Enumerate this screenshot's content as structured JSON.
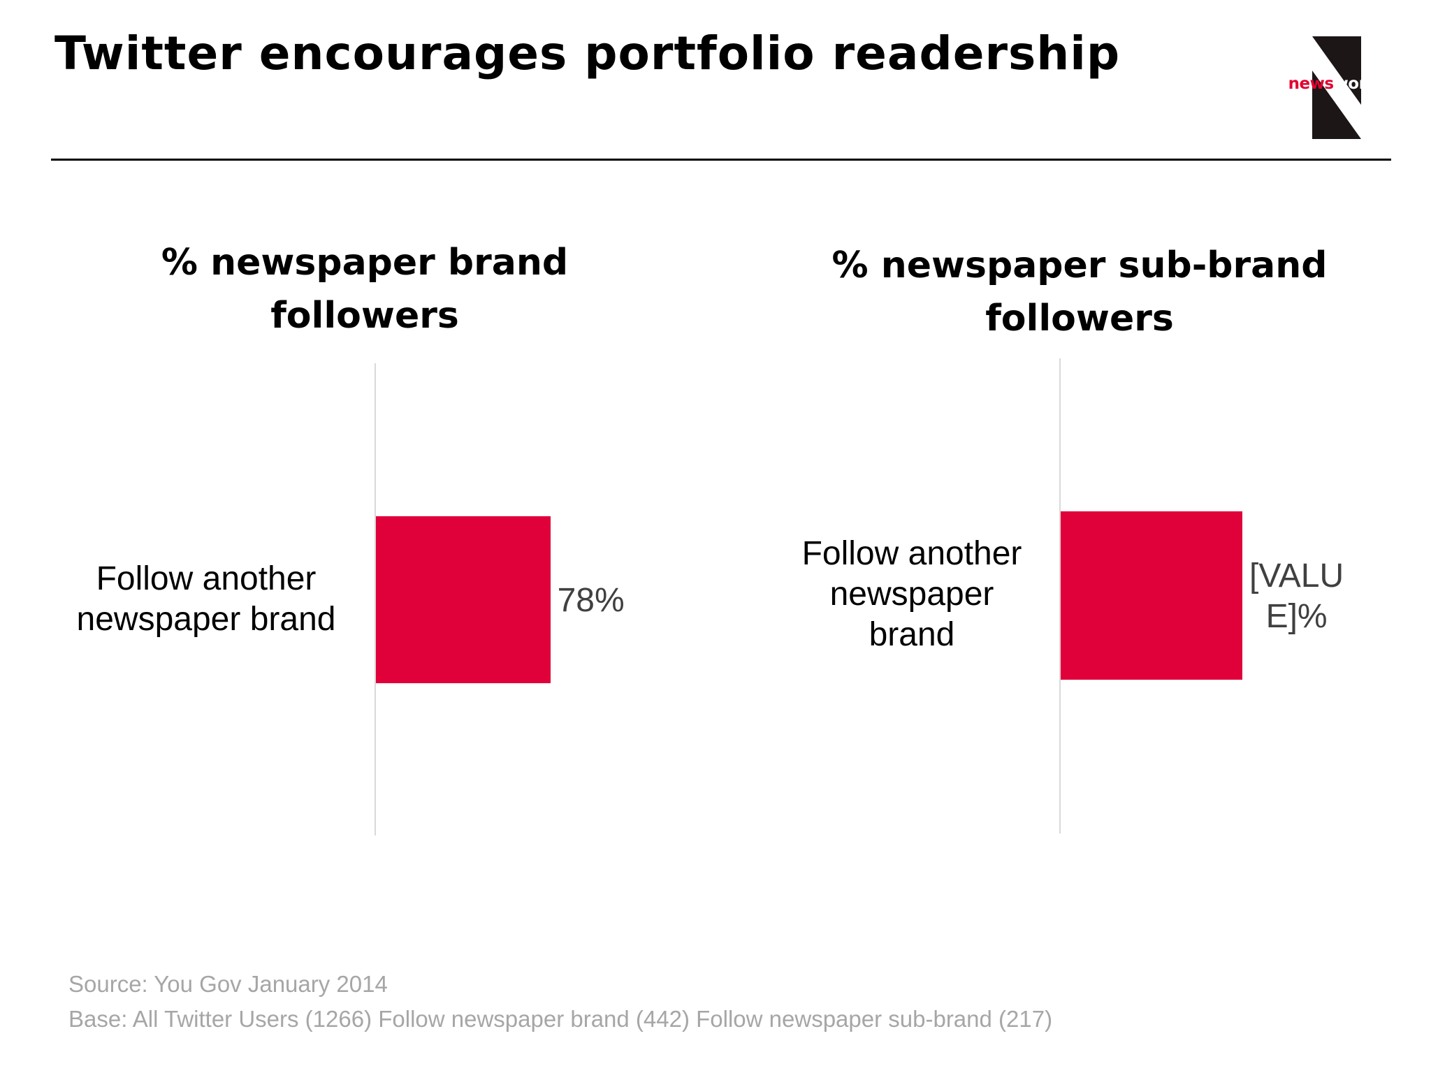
{
  "header": {
    "title": "Twitter encourages portfolio readership",
    "logo": {
      "prefix": "news",
      "suffix": "works",
      "letter_icon": "n-letter-icon"
    }
  },
  "colors": {
    "bar": "#e0003a",
    "logo_bg": "#1c1617",
    "logo_red": "#e2002f",
    "axis": "#d9d9d9"
  },
  "chart_data": [
    {
      "type": "bar",
      "orientation": "horizontal",
      "title_lines": [
        "% newspaper brand",
        "followers"
      ],
      "categories": [
        "Follow another newspaper brand"
      ],
      "category_lines": [
        "Follow another",
        "newspaper brand"
      ],
      "values": [
        78
      ],
      "value_labels": [
        "78%"
      ],
      "value_label_lines": [
        "78%"
      ],
      "xlim": [
        0,
        250
      ],
      "grid": false
    },
    {
      "type": "bar",
      "orientation": "horizontal",
      "title_lines": [
        "% newspaper sub-brand",
        "followers"
      ],
      "categories": [
        "Follow another newspaper brand"
      ],
      "category_lines": [
        "Follow another",
        "newspaper",
        "brand"
      ],
      "values": [
        78
      ],
      "value_labels": [
        "[VALUE]%"
      ],
      "value_label_lines": [
        "[VALU",
        "E]%"
      ],
      "xlim": [
        0,
        228
      ],
      "grid": false
    }
  ],
  "footer": {
    "source": "Source: You Gov January 2014",
    "base": "Base: All Twitter Users (1266) Follow newspaper brand (442) Follow newspaper sub-brand (217)"
  }
}
